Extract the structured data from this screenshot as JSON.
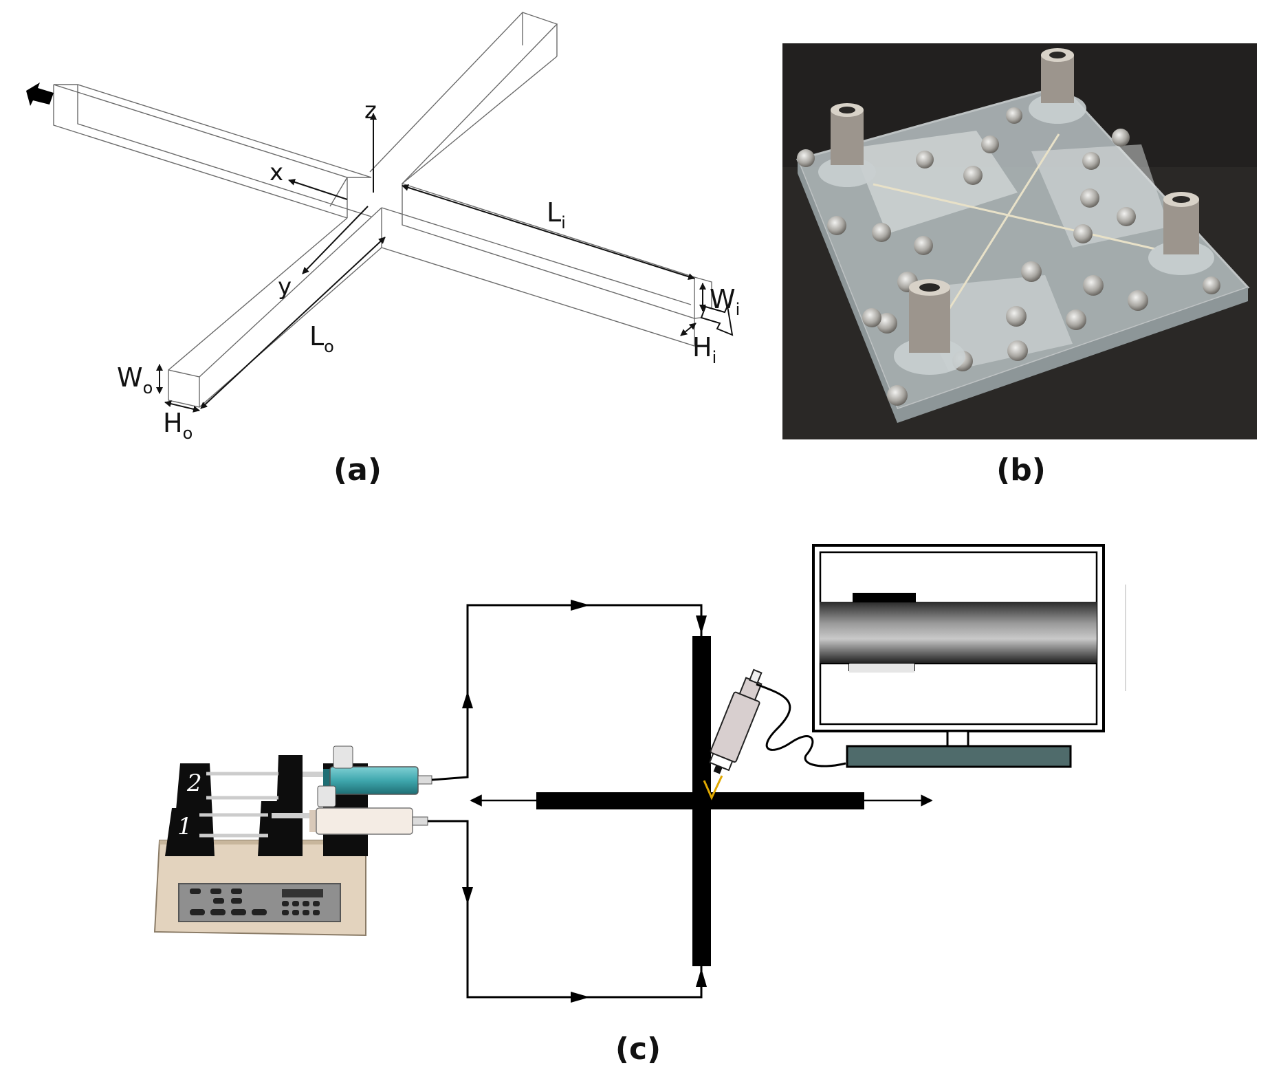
{
  "panels": {
    "a": {
      "label": "(a)"
    },
    "b": {
      "label": "(b)"
    },
    "c": {
      "label": "(c)"
    }
  },
  "panel_a": {
    "axes": {
      "x": "x",
      "y": "y",
      "z": "z"
    },
    "dimensions": {
      "Li": {
        "main": "L",
        "sub": "i"
      },
      "Lo": {
        "main": "L",
        "sub": "o"
      },
      "Wi": {
        "main": "W",
        "sub": "i"
      },
      "Wo": {
        "main": "W",
        "sub": "o"
      },
      "Hi": {
        "main": "H",
        "sub": "i"
      },
      "Ho": {
        "main": "H",
        "sub": "o"
      }
    }
  },
  "panel_c": {
    "syringes": {
      "top_number": "2",
      "bottom_number": "1"
    }
  },
  "colors": {
    "photo_background": "#2a2826",
    "acrylic": "#b9c2c4",
    "pump_body": "#e3d3be",
    "pump_panel": "#8f8f8f",
    "syringe_2": "#3fa7ad",
    "syringe_1": "#f4ece4",
    "monitor_stand": "#4f6b6b",
    "camera": "#d8cfcf"
  }
}
